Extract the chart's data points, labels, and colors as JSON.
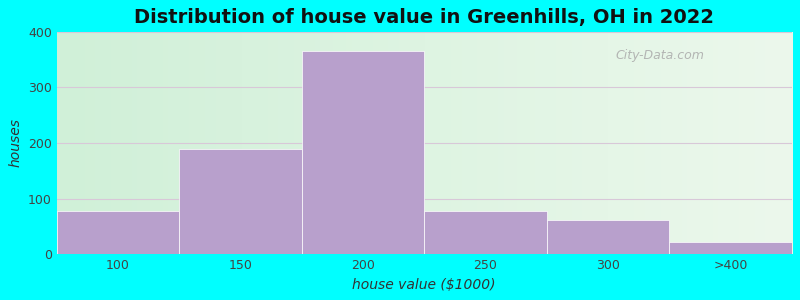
{
  "title": "Distribution of house value in Greenhills, OH in 2022",
  "xlabel": "house value ($1000)",
  "ylabel": "houses",
  "bar_labels": [
    "100",
    "150",
    "200",
    "250",
    "300",
    ">400"
  ],
  "bar_heights": [
    78,
    190,
    365,
    78,
    62,
    22
  ],
  "bar_color": "#B8A0CC",
  "bar_edge_color": "#B8A0CC",
  "ylim": [
    0,
    400
  ],
  "yticks": [
    0,
    100,
    200,
    300,
    400
  ],
  "figsize": [
    8.0,
    3.0
  ],
  "dpi": 100,
  "bg_color": "#00FFFF",
  "plot_bg_left": "#d0f0d8",
  "plot_bg_right": "#e8f8e8",
  "grid_color": "#d8c8d8",
  "title_fontsize": 14,
  "axis_label_fontsize": 10,
  "tick_fontsize": 9,
  "watermark_text": "City-Data.com"
}
